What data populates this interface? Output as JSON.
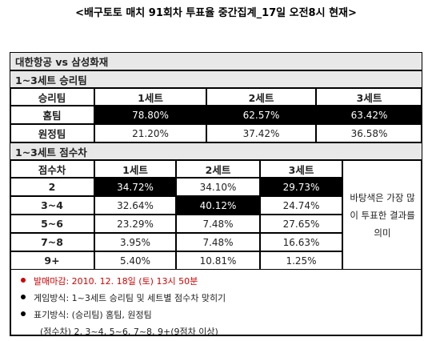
{
  "title": "<배구토토 매치 91회차 투표율 중간집계_17일 오전8시 현재>",
  "match": "대한항공 vs 삼성화재",
  "win_section": {
    "title": "1~3세트 승리팀",
    "header": [
      "승리팀",
      "1세트",
      "2세트",
      "3세트"
    ],
    "rows": [
      {
        "label": "홈팀",
        "values": [
          "78.80%",
          "62.57%",
          "63.42%"
        ],
        "highlighted": [
          0,
          1,
          2
        ]
      },
      {
        "label": "원정팀",
        "values": [
          "21.20%",
          "37.42%",
          "36.58%"
        ],
        "highlighted": []
      }
    ]
  },
  "margin_section": {
    "title": "1~3세트 점수차",
    "header": [
      "점수차",
      "1세트",
      "2세트",
      "3세트"
    ],
    "rows": [
      {
        "label": "2",
        "values": [
          "34.72%",
          "34.10%",
          "29.73%"
        ],
        "highlighted": [
          0,
          2
        ]
      },
      {
        "label": "3~4",
        "values": [
          "32.64%",
          "40.12%",
          "24.74%"
        ],
        "highlighted": [
          1
        ]
      },
      {
        "label": "5~6",
        "values": [
          "23.29%",
          "7.48%",
          "27.65%"
        ],
        "highlighted": []
      },
      {
        "label": "7~8",
        "values": [
          "3.95%",
          "7.48%",
          "16.63%"
        ],
        "highlighted": []
      },
      {
        "label": "9+",
        "values": [
          "5.40%",
          "10.81%",
          "1.25%"
        ],
        "highlighted": []
      }
    ],
    "note": "바탕색은 가장 많이 투표한 결과를 의미"
  },
  "notes": [
    "발매마감: 2010. 12. 18일 (토) 13시 50분",
    "게임방식: 1~3세트 승리팀 및 세트별 점수차 맞히기",
    "표기방식: (승리팀) 홈팀, 원정팀",
    "(점수차) 2, 3~4, 5~6, 7~8, 9+(9점차 이상)"
  ]
}
